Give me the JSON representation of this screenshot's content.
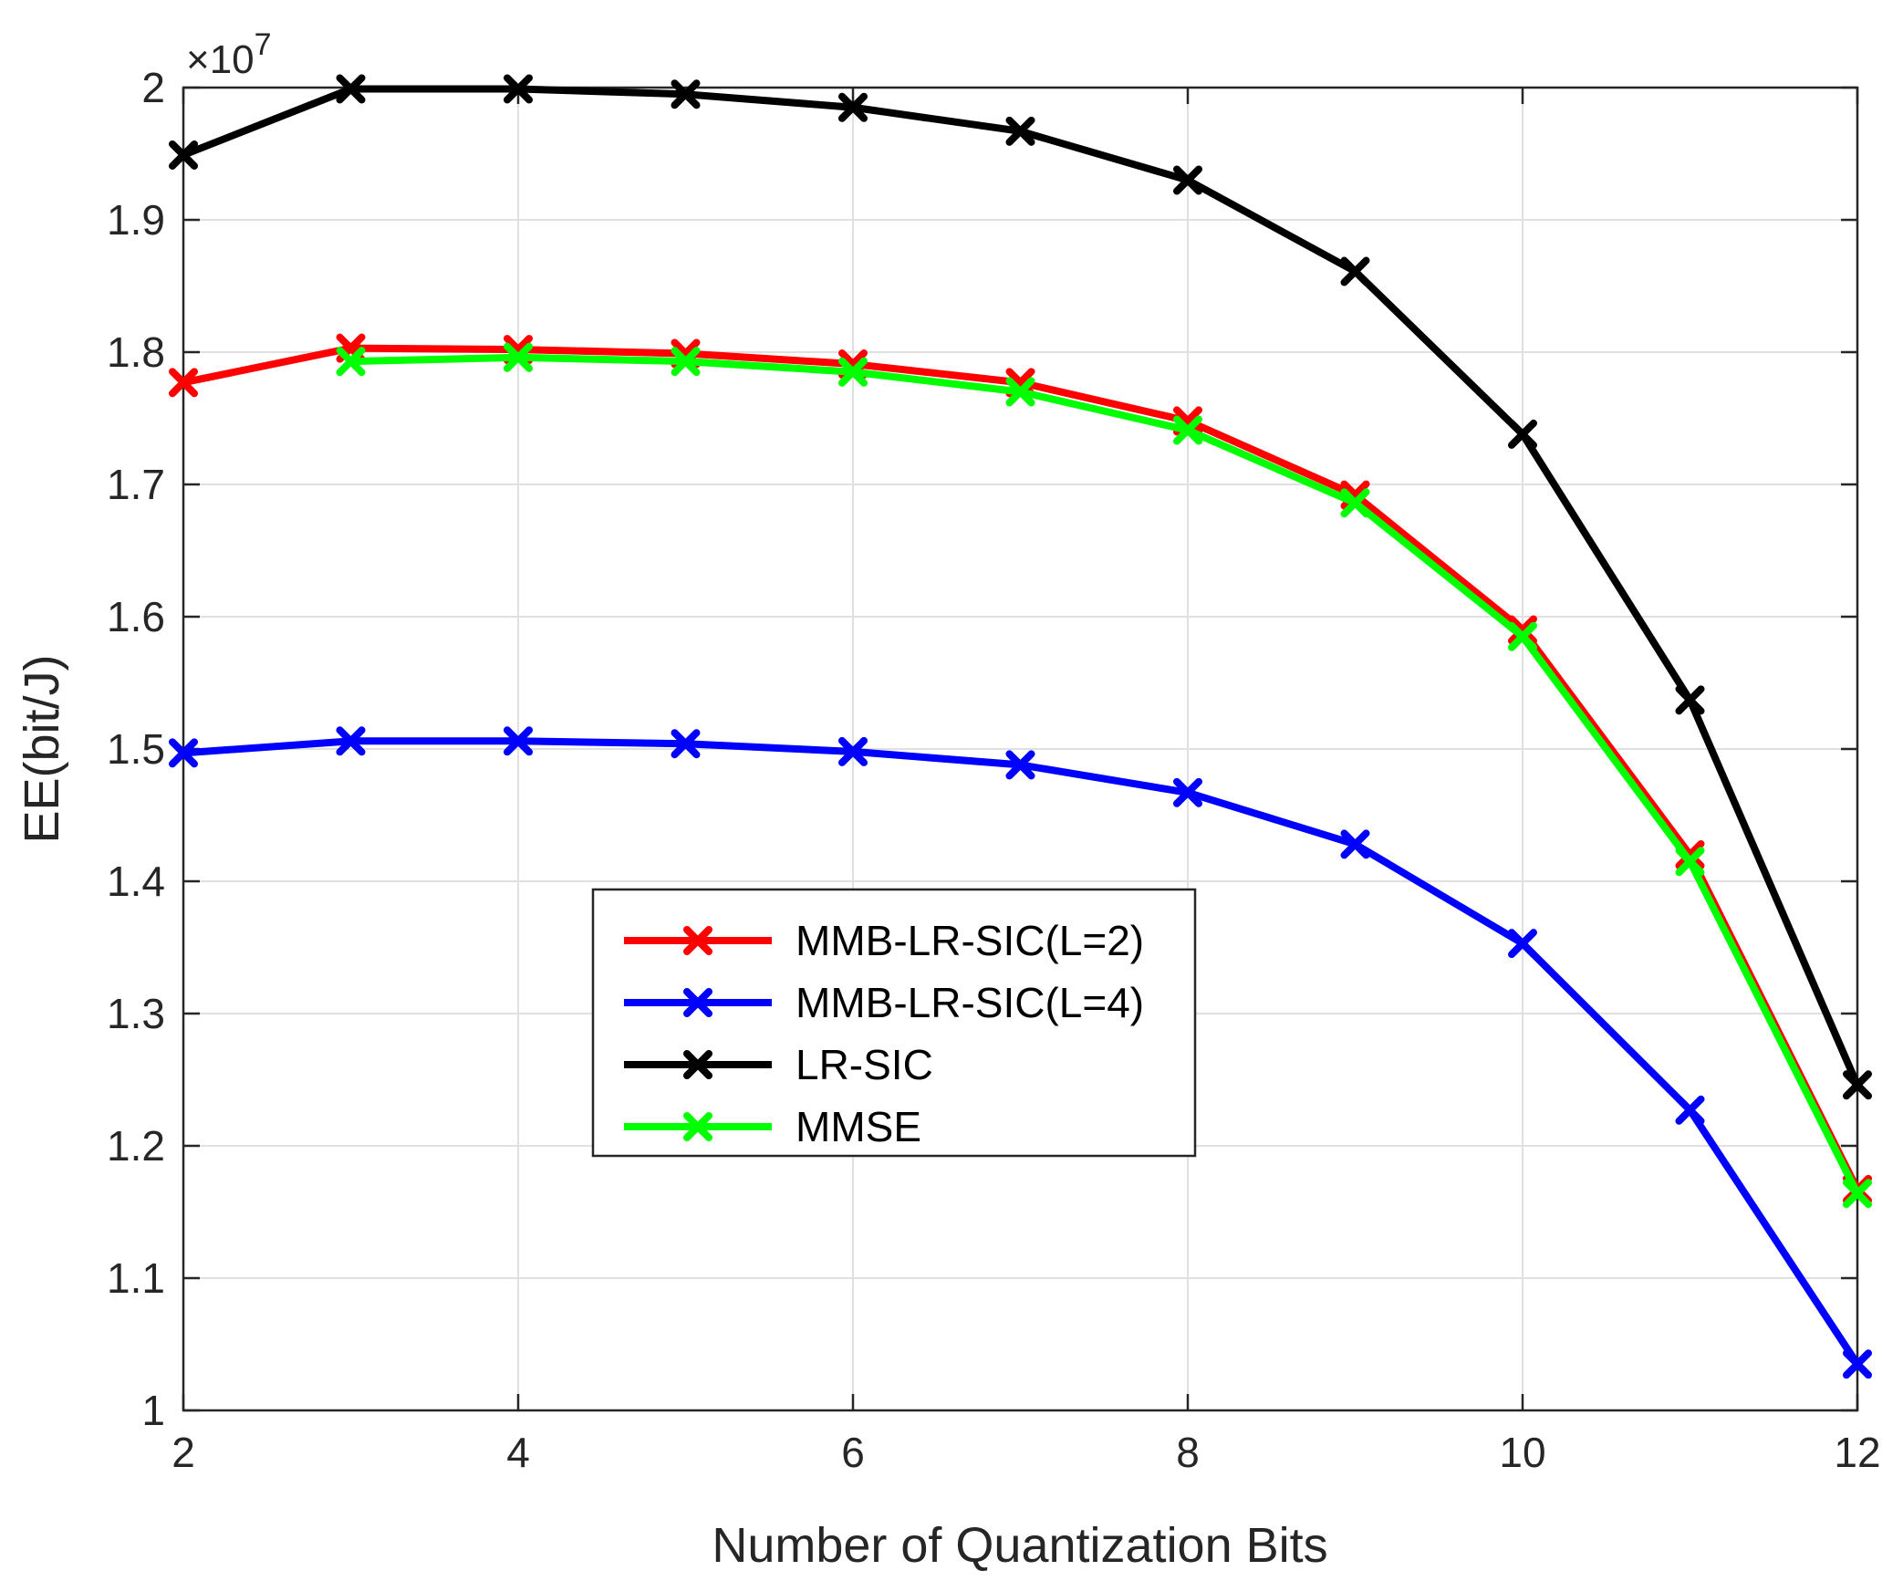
{
  "chart_data": {
    "type": "line",
    "title": "",
    "xlabel": "Number of Quantization Bits",
    "ylabel": "EE(bit/J)",
    "y_exponent_label": "×10",
    "y_exponent_power": "7",
    "xlim": [
      2,
      12
    ],
    "ylim": [
      1.0,
      2.0
    ],
    "x_ticks": [
      2,
      4,
      6,
      8,
      10,
      12
    ],
    "x_tick_labels": [
      "2",
      "4",
      "6",
      "8",
      "10",
      "12"
    ],
    "y_ticks": [
      1.0,
      1.1,
      1.2,
      1.3,
      1.4,
      1.5,
      1.6,
      1.7,
      1.8,
      1.9,
      2.0
    ],
    "y_tick_labels": [
      "1",
      "1.1",
      "1.2",
      "1.3",
      "1.4",
      "1.5",
      "1.6",
      "1.7",
      "1.8",
      "1.9",
      "2"
    ],
    "grid": true,
    "legend_position": "center-left",
    "x": [
      2,
      3,
      4,
      5,
      6,
      7,
      8,
      9,
      10,
      11,
      12
    ],
    "series": [
      {
        "name": "MMB-LR-SIC(L=2)",
        "color": "#ff0000",
        "marker": "x",
        "values": [
          1.777,
          1.803,
          1.802,
          1.799,
          1.791,
          1.777,
          1.748,
          1.692,
          1.59,
          1.42,
          1.167
        ]
      },
      {
        "name": "MMB-LR-SIC(L=4)",
        "color": "#0000ff",
        "marker": "x",
        "values": [
          1.497,
          1.506,
          1.506,
          1.504,
          1.498,
          1.488,
          1.467,
          1.428,
          1.353,
          1.227,
          1.035
        ]
      },
      {
        "name": "LR-SIC",
        "color": "#000000",
        "marker": "x",
        "values": [
          1.949,
          1.999,
          1.999,
          1.995,
          1.985,
          1.967,
          1.93,
          1.861,
          1.738,
          1.537,
          1.246
        ]
      },
      {
        "name": "MMSE",
        "color": "#00ff00",
        "marker": "x",
        "values": [
          null,
          1.793,
          1.796,
          1.793,
          1.785,
          1.77,
          1.741,
          1.686,
          1.585,
          1.415,
          1.164
        ]
      }
    ]
  }
}
